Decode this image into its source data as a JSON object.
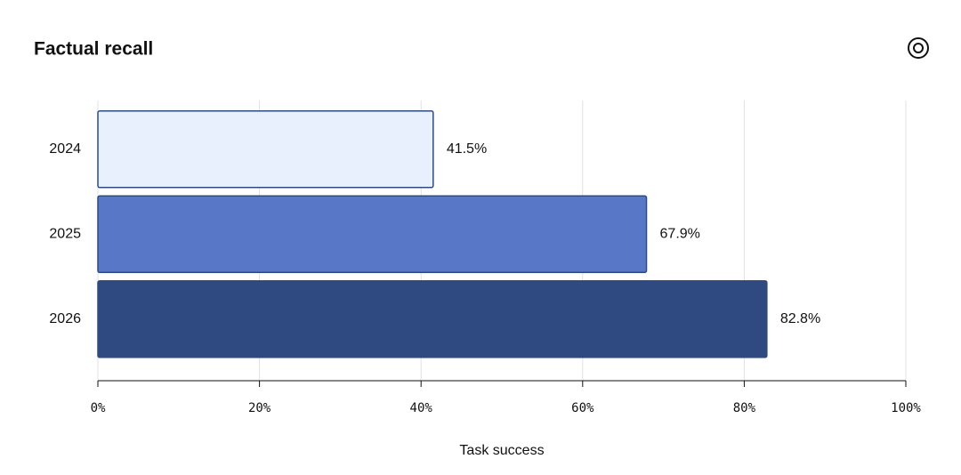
{
  "chart_data": {
    "type": "hbar",
    "title": "Factual recall",
    "x_label": "Task success",
    "categories": [
      "2024",
      "2025",
      "2026"
    ],
    "values": [
      41.5,
      67.9,
      82.8
    ],
    "value_labels": [
      "41.5%",
      "67.9%",
      "82.8%"
    ],
    "colors": [
      "#e9f0fd",
      "#5878c7",
      "#2f4a80"
    ],
    "edge_color": "#2f4a80",
    "xlim": [
      0,
      100
    ],
    "xticks": [
      {
        "value": 0,
        "label": "0%"
      },
      {
        "value": 20,
        "label": "20%"
      },
      {
        "value": 40,
        "label": "40%"
      },
      {
        "value": 60,
        "label": "60%"
      },
      {
        "value": 80,
        "label": "80%"
      },
      {
        "value": 100,
        "label": "100%"
      }
    ],
    "grid": true
  }
}
